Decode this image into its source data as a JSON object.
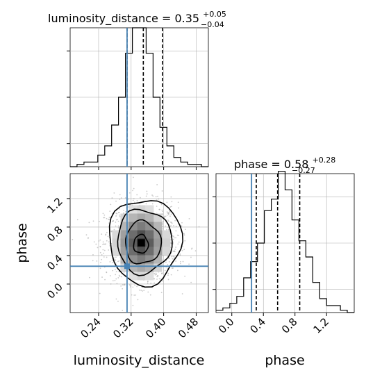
{
  "chart_data": [
    {
      "type": "histogram",
      "param": "luminosity_distance",
      "title": "luminosity_distance = 0.35",
      "title_value_upper": "+0.05",
      "title_value_lower": "−0.04",
      "xlim": [
        0.17,
        0.51
      ],
      "ylim": [
        0,
        60
      ],
      "bin_edges": [
        0.17,
        0.187,
        0.204,
        0.221,
        0.238,
        0.255,
        0.272,
        0.289,
        0.306,
        0.323,
        0.34,
        0.357,
        0.374,
        0.391,
        0.408,
        0.425,
        0.442,
        0.459,
        0.476,
        0.493,
        0.51
      ],
      "counts": [
        0,
        1,
        2,
        2,
        5,
        9,
        18,
        30,
        49,
        60,
        60,
        49,
        30,
        17,
        9,
        4,
        2,
        1,
        1,
        0
      ],
      "quantile_lines": [
        0.31,
        0.35,
        0.397
      ],
      "truth": 0.31
    },
    {
      "type": "histogram",
      "param": "phase",
      "title": "phase = 0.58",
      "title_value_upper": "+0.28",
      "title_value_lower": "−0.27",
      "xlim": [
        -0.2,
        1.55
      ],
      "ylim": [
        0,
        60
      ],
      "bin_edges": [
        -0.2,
        -0.1125,
        -0.025,
        0.0625,
        0.15,
        0.2375,
        0.325,
        0.4125,
        0.5,
        0.5875,
        0.675,
        0.7625,
        0.85,
        0.9375,
        1.025,
        1.1125,
        1.2,
        1.2875,
        1.375,
        1.4625,
        1.55
      ],
      "counts": [
        1,
        2,
        4,
        7,
        15,
        22,
        30,
        44,
        49,
        61,
        53,
        40,
        31,
        24,
        13,
        6,
        3,
        3,
        1,
        0
      ],
      "quantile_lines": [
        0.31,
        0.58,
        0.86
      ],
      "truth": 0.25,
      "x_ticks": [
        "0.0",
        "0.4",
        "0.8",
        "1.2"
      ],
      "x_tick_values": [
        0.0,
        0.4,
        0.8,
        1.2
      ],
      "xlabel": "phase"
    },
    {
      "type": "scatter-2d-density",
      "params": [
        "luminosity_distance",
        "phase"
      ],
      "xlim": [
        0.17,
        0.51
      ],
      "ylim": [
        -0.4,
        1.55
      ],
      "peak": [
        0.345,
        0.58
      ],
      "contour_levels": [
        {
          "cx": 0.344,
          "cy": 0.56,
          "rx": 0.018,
          "ry": 0.13
        },
        {
          "cx": 0.349,
          "cy": 0.58,
          "rx": 0.044,
          "ry": 0.3
        },
        {
          "cx": 0.352,
          "cy": 0.6,
          "rx": 0.067,
          "ry": 0.45
        },
        {
          "cx": 0.354,
          "cy": 0.6,
          "rx": 0.089,
          "ry": 0.6
        }
      ],
      "truth": [
        0.31,
        0.25
      ],
      "x_ticks": [
        "0.24",
        "0.32",
        "0.40",
        "0.48"
      ],
      "x_tick_values": [
        0.24,
        0.32,
        0.4,
        0.48
      ],
      "y_ticks": [
        "0.0",
        "0.4",
        "0.8",
        "1.2"
      ],
      "y_tick_values": [
        0.0,
        0.4,
        0.8,
        1.2
      ],
      "xlabel": "luminosity_distance",
      "ylabel": "phase"
    }
  ],
  "colors": {
    "truth": "#4682b4",
    "line": "#000000",
    "grid": "#b0b0b0",
    "density": "#000000"
  }
}
